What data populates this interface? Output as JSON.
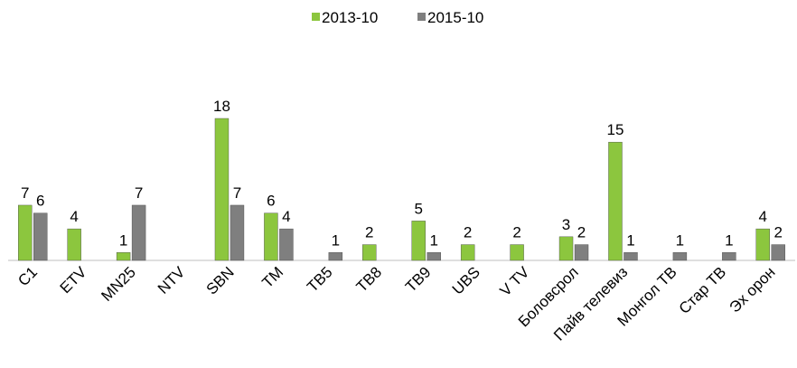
{
  "chart_data": {
    "type": "bar",
    "categories": [
      "C1",
      "ETV",
      "MN25",
      "NTV",
      "SBN",
      "TM",
      "TB5",
      "TB8",
      "TB9",
      "UBS",
      "V TV",
      "Боловсрол",
      "Пайв телевиз",
      "Монгол ТВ",
      "Стар ТВ",
      "Эх орон"
    ],
    "series": [
      {
        "name": "2013-10",
        "color": "#8cc63e",
        "values": [
          7,
          4,
          1,
          null,
          18,
          6,
          null,
          2,
          5,
          2,
          2,
          3,
          15,
          null,
          null,
          4
        ]
      },
      {
        "name": "2015-10",
        "color": "#7f7f7f",
        "values": [
          6,
          null,
          7,
          null,
          7,
          4,
          1,
          null,
          1,
          null,
          null,
          2,
          1,
          1,
          1,
          2
        ]
      }
    ],
    "legend": "top"
  }
}
